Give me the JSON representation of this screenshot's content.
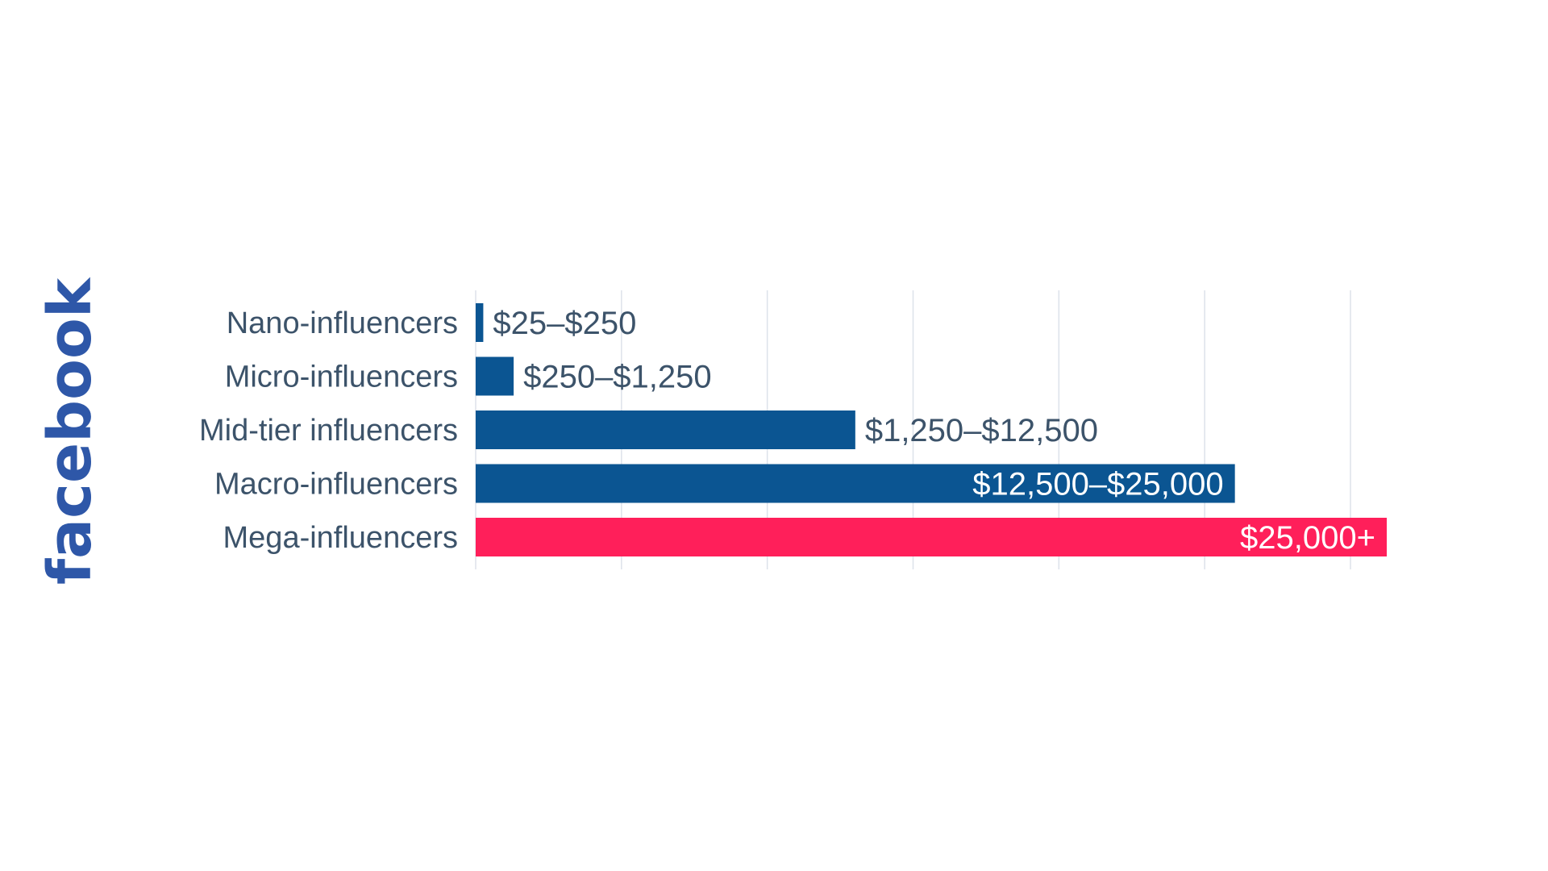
{
  "brand": {
    "name": "facebook",
    "color": "#2e57a8"
  },
  "chart_data": {
    "type": "bar",
    "orientation": "horizontal",
    "title": "",
    "xlabel": "",
    "ylabel": "",
    "grid": true,
    "xlim": [
      0,
      30000
    ],
    "categories": [
      "Nano-influencers",
      "Micro-influencers",
      "Mid-tier influencers",
      "Macro-influencers",
      "Mega-influencers"
    ],
    "values": [
      250,
      1250,
      12500,
      25000,
      30000
    ],
    "value_labels": [
      "$25–$250",
      "$250–$1,250",
      "$1,250–$12,500",
      "$12,500–$25,000",
      "$25,000+"
    ],
    "colors": [
      "#0b5592",
      "#0b5592",
      "#0b5592",
      "#0b5592",
      "#ff1f5a"
    ]
  }
}
